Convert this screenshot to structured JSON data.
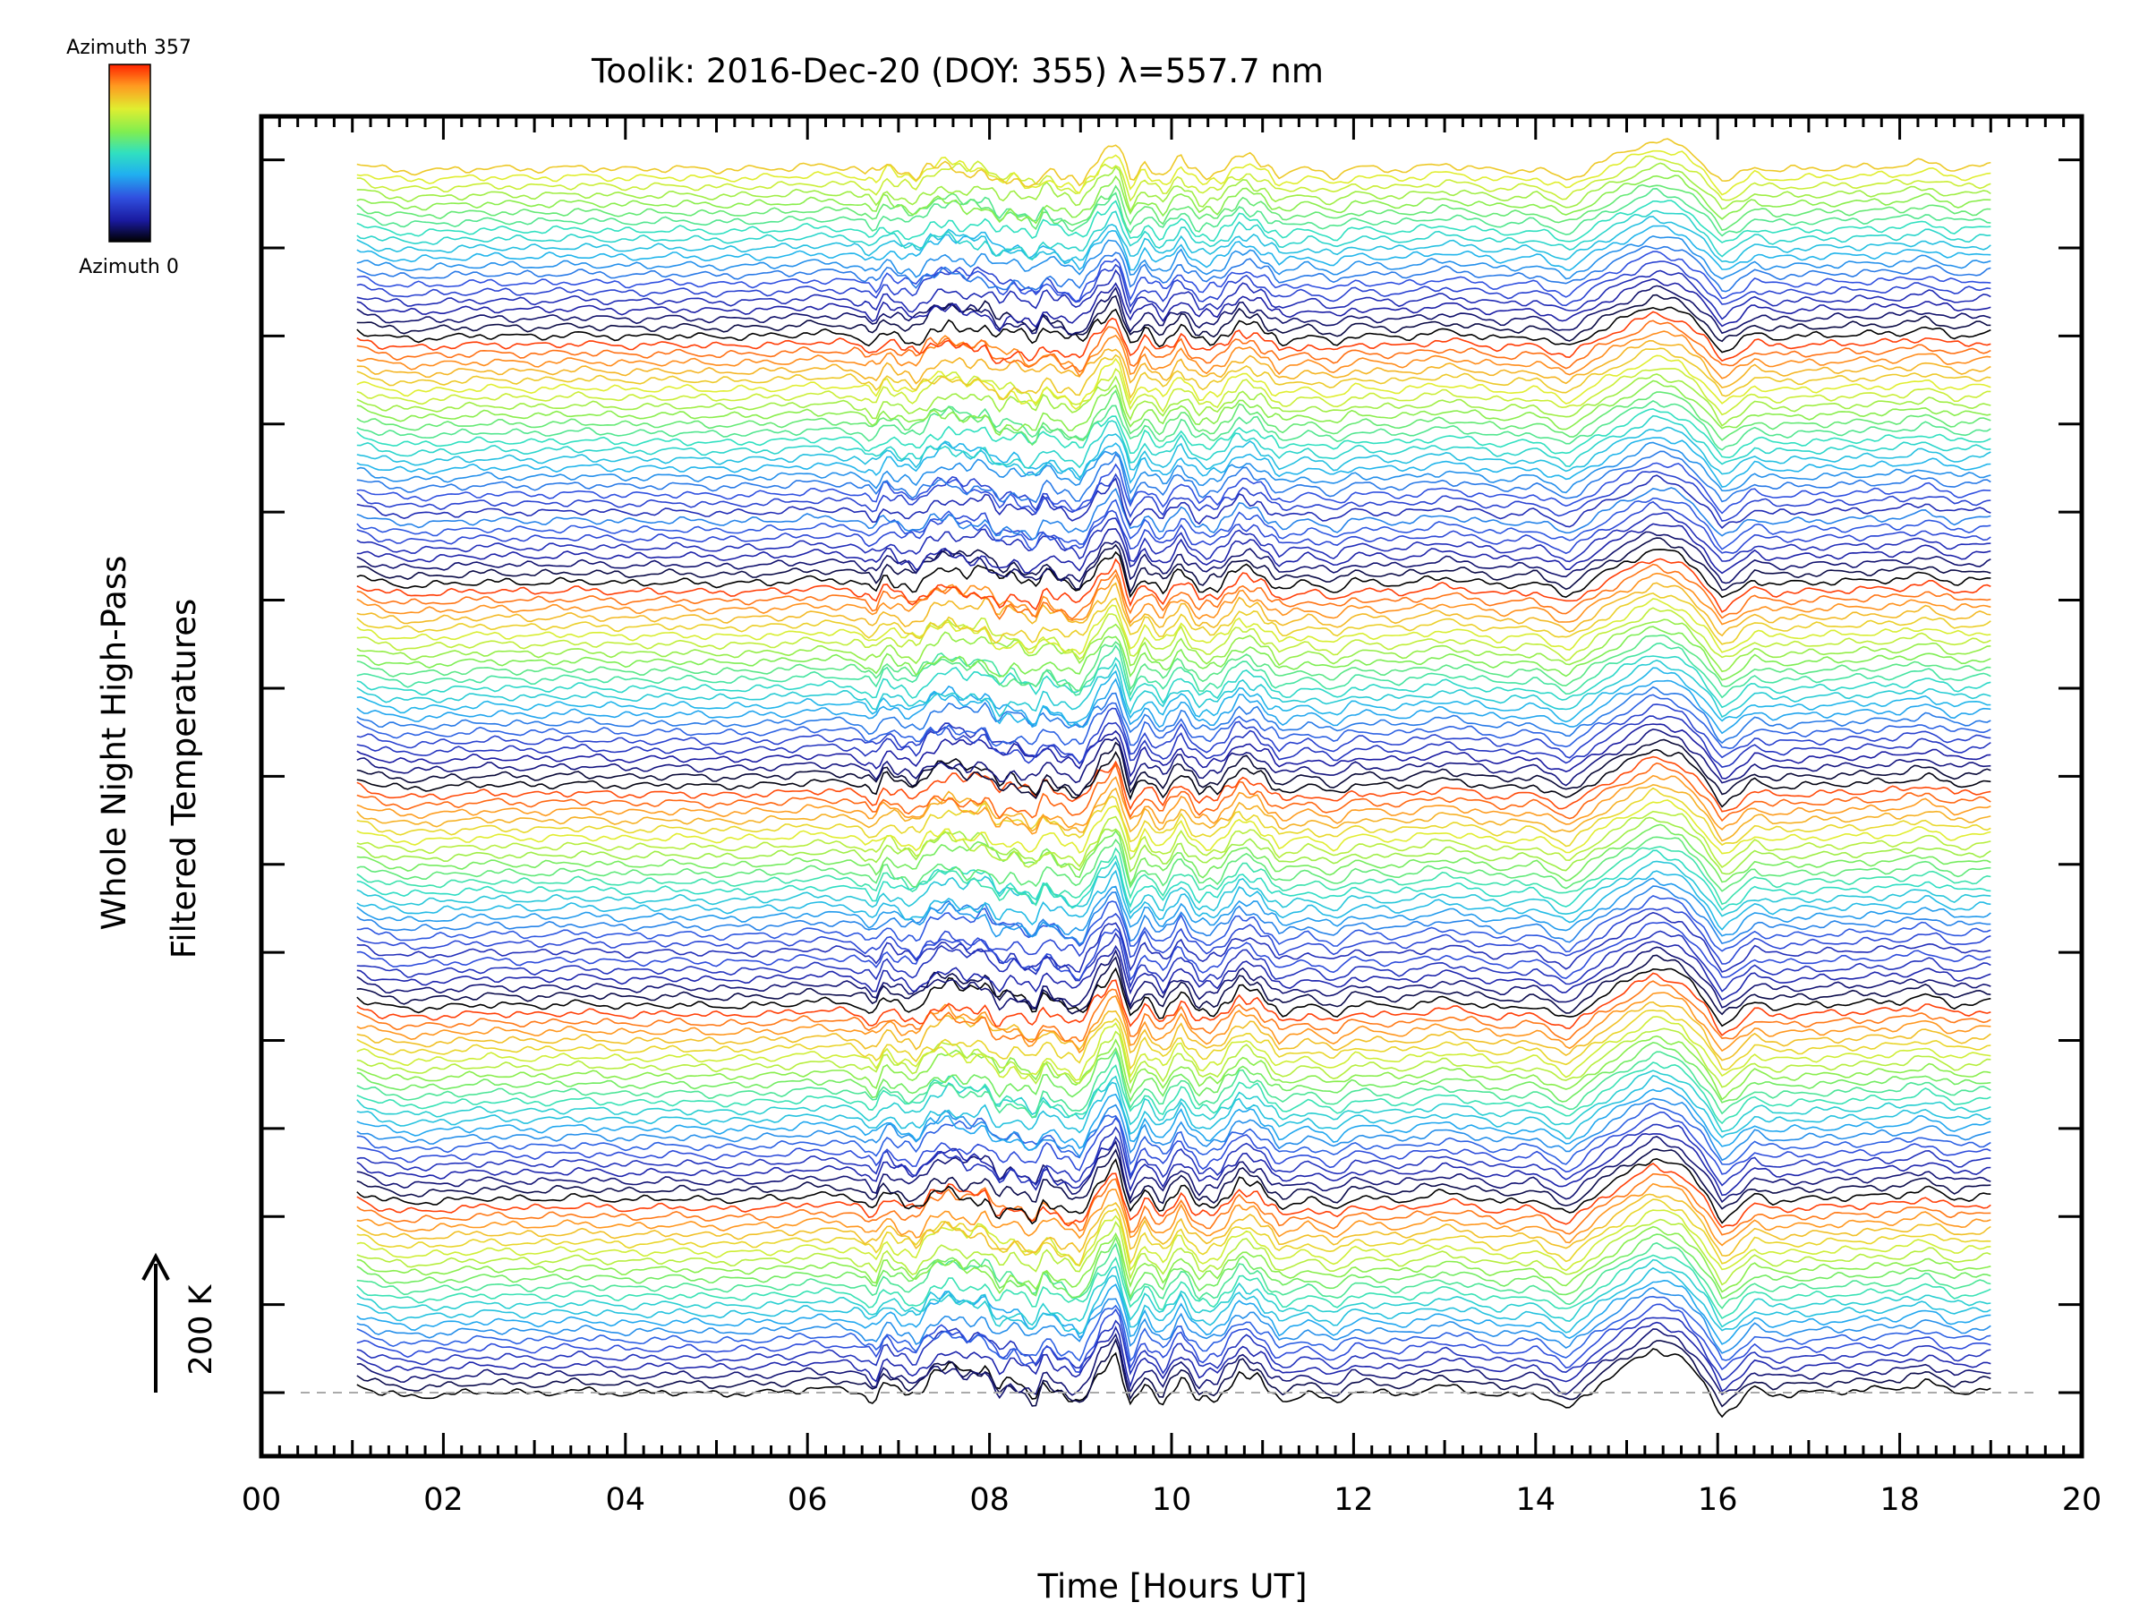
{
  "chart_data": {
    "type": "line",
    "title": "Toolik: 2016-Dec-20 (DOY: 355) λ=557.7 nm",
    "xlabel": "Time [Hours UT]",
    "ylabel_line1": "Whole Night High-Pass",
    "ylabel_line2": "Filtered Temperatures",
    "xlim": [
      0,
      20
    ],
    "x_tick_labels": [
      "00",
      "02",
      "04",
      "06",
      "08",
      "10",
      "12",
      "14",
      "16",
      "18",
      "20"
    ],
    "data_time_range_hours": [
      1.05,
      19.0
    ],
    "series_count": 140,
    "series_spacing_K": 20,
    "azimuth_range_deg": [
      0,
      357
    ],
    "scale_bar_label": "200 K",
    "colorbar_top_label": "Azimuth 357",
    "colorbar_bottom_label": "Azimuth 0",
    "colormap": [
      "#000000",
      "#1a1aa0",
      "#3050e0",
      "#20b0f0",
      "#30e0c0",
      "#80ee50",
      "#e0ee30",
      "#ff9920",
      "#ff2200"
    ],
    "baseline_style": "dashed",
    "grid": false,
    "profile_hours": [
      1.05,
      1.3,
      1.6,
      2.0,
      2.5,
      3.0,
      3.5,
      4.0,
      4.6,
      5.0,
      5.5,
      5.8,
      6.0,
      6.3,
      6.5,
      6.75,
      6.85,
      7.0,
      7.2,
      7.35,
      7.55,
      7.75,
      7.95,
      8.1,
      8.25,
      8.5,
      8.6,
      8.75,
      9.0,
      9.2,
      9.4,
      9.55,
      9.7,
      9.9,
      10.1,
      10.3,
      10.5,
      10.75,
      10.95,
      11.2,
      11.5,
      11.8,
      12.0,
      12.5,
      13.0,
      13.3,
      13.6,
      14.0,
      14.35,
      14.7,
      15.0,
      15.3,
      15.6,
      15.85,
      16.05,
      16.2,
      16.4,
      16.6,
      17.0,
      17.5,
      18.0,
      18.3,
      18.6,
      19.0
    ],
    "profile_K": [
      20,
      0,
      -10,
      -5,
      3,
      -2,
      5,
      -3,
      2,
      -4,
      0,
      3,
      10,
      8,
      5,
      -20,
      20,
      0,
      -15,
      25,
      40,
      20,
      30,
      -15,
      5,
      -30,
      15,
      -10,
      -35,
      45,
      90,
      -40,
      20,
      -25,
      35,
      -20,
      -15,
      45,
      30,
      -20,
      0,
      -25,
      5,
      -5,
      15,
      5,
      -10,
      0,
      -40,
      20,
      60,
      100,
      80,
      20,
      -50,
      -30,
      10,
      -5,
      0,
      5,
      10,
      25,
      0,
      10
    ],
    "tracer_hours": [
      6.5,
      7.0,
      7.6,
      8.1,
      8.7,
      9.2,
      9.5,
      10.0,
      10.8,
      11.4,
      12.0,
      14.3,
      15.2,
      16.0,
      16.7
    ],
    "tracer_K": [
      5,
      10,
      40,
      50,
      25,
      15,
      55,
      10,
      35,
      5,
      0,
      0,
      45,
      0,
      0
    ]
  }
}
